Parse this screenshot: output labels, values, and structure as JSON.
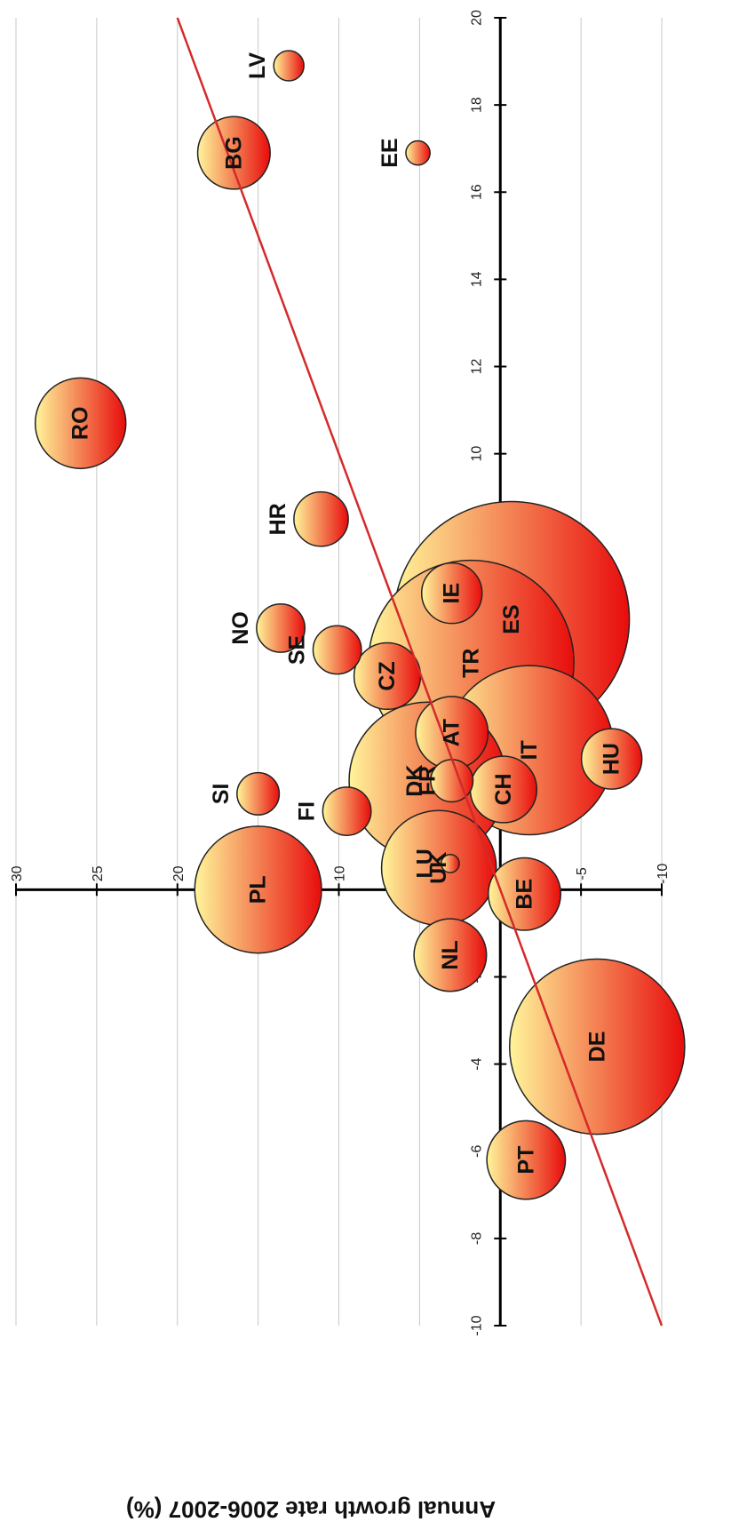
{
  "chart_data": {
    "type": "scatter",
    "title": "",
    "xlabel": "",
    "ylabel": "Annual growth rate 2006-2007 (%)",
    "xlim": [
      -10,
      20
    ],
    "ylim": [
      -10,
      30
    ],
    "x_ticks": [
      -10,
      -8,
      -6,
      -4,
      -2,
      0,
      2,
      4,
      6,
      8,
      10,
      12,
      14,
      16,
      18,
      20
    ],
    "y_ticks": [
      -10,
      -5,
      0,
      5,
      10,
      15,
      20,
      25,
      30
    ],
    "grid": "horizontal",
    "trendline": {
      "x": [
        -10,
        20
      ],
      "y": [
        -10,
        20
      ],
      "color": "#d42a2a"
    },
    "bubble_colors": {
      "light": "#fff59a",
      "dark": "#e80c0c"
    },
    "points": [
      {
        "label": "RO",
        "x": 10.7,
        "y": 26.0,
        "size": 1.5
      },
      {
        "label": "LV",
        "x": 18.9,
        "y": 13.1,
        "size": 0.5
      },
      {
        "label": "BG",
        "x": 16.9,
        "y": 16.5,
        "size": 1.2
      },
      {
        "label": "EE",
        "x": 16.9,
        "y": 5.1,
        "size": 0.4
      },
      {
        "label": "HR",
        "x": 8.5,
        "y": 11.1,
        "size": 0.9
      },
      {
        "label": "NO",
        "x": 6.0,
        "y": 13.6,
        "size": 0.8
      },
      {
        "label": "SE",
        "x": 5.5,
        "y": 10.1,
        "size": 0.8
      },
      {
        "label": "CZ",
        "x": 4.9,
        "y": 7.0,
        "size": 1.1
      },
      {
        "label": "SI",
        "x": 2.2,
        "y": 15.0,
        "size": 0.7
      },
      {
        "label": "FI",
        "x": 1.8,
        "y": 9.5,
        "size": 0.8
      },
      {
        "label": "FR",
        "x": 2.5,
        "y": 4.5,
        "size": 2.6
      },
      {
        "label": "DK",
        "x": 2.5,
        "y": 3.0,
        "size": 0.7
      },
      {
        "label": "IE",
        "x": 6.8,
        "y": 3.0,
        "size": 1.0
      },
      {
        "label": "ES",
        "x": 6.2,
        "y": -0.7,
        "size": 3.9
      },
      {
        "label": "TR",
        "x": 5.2,
        "y": 1.8,
        "size": 3.4
      },
      {
        "label": "AT",
        "x": 3.6,
        "y": 3.0,
        "size": 1.2
      },
      {
        "label": "IT",
        "x": 3.2,
        "y": -1.8,
        "size": 2.8
      },
      {
        "label": "CH",
        "x": 2.3,
        "y": -0.2,
        "size": 1.1
      },
      {
        "label": "HU",
        "x": 3.0,
        "y": -6.9,
        "size": 1.0
      },
      {
        "label": "UK",
        "x": 0.5,
        "y": 3.8,
        "size": 1.9
      },
      {
        "label": "LU",
        "x": 0.6,
        "y": 3.1,
        "size": 0.3
      },
      {
        "label": "PL",
        "x": 0.0,
        "y": 15.0,
        "size": 2.1
      },
      {
        "label": "BE",
        "x": -0.1,
        "y": -1.5,
        "size": 1.2
      },
      {
        "label": "NL",
        "x": -1.5,
        "y": 3.1,
        "size": 1.2
      },
      {
        "label": "DE",
        "x": -3.6,
        "y": -6.0,
        "size": 2.9
      },
      {
        "label": "PT",
        "x": -6.2,
        "y": -1.6,
        "size": 1.3
      }
    ]
  }
}
